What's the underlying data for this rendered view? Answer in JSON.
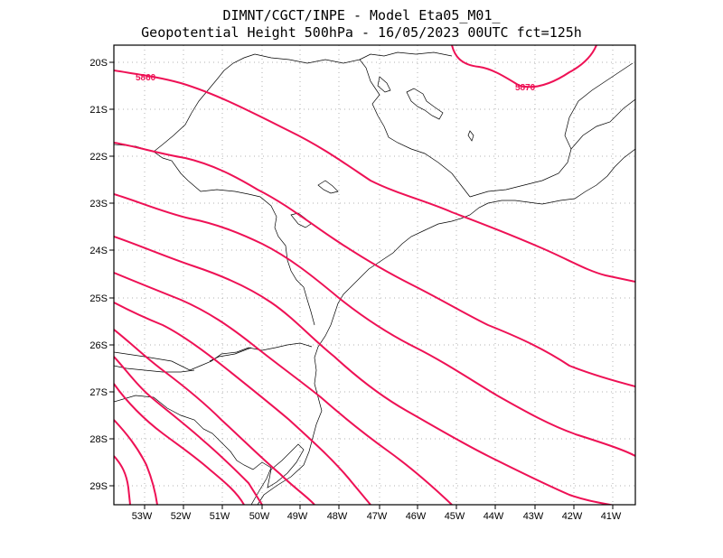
{
  "header": {
    "line1": "DIMNT/CGCT/INPE -  Model Eta05_M01_",
    "line2": "Geopotential Height 500hPa -  16/05/2023 00UTC fct=125h"
  },
  "map": {
    "lat_labels": [
      "20S",
      "21S",
      "22S",
      "23S",
      "24S",
      "25S",
      "26S",
      "27S",
      "28S",
      "29S"
    ],
    "lon_labels": [
      "53W",
      "52W",
      "51W",
      "50W",
      "49W",
      "48W",
      "47W",
      "46W",
      "45W",
      "44W",
      "43W",
      "42W",
      "41W"
    ],
    "contour_color": "#ee1155",
    "coast_color": "#000000",
    "grid_color": "#b0b0b0",
    "contour_labels": [
      "5860",
      "5870"
    ]
  }
}
